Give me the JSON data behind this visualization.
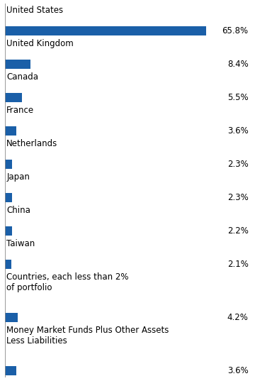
{
  "categories": [
    "United States",
    "United Kingdom",
    "Canada",
    "France",
    "Netherlands",
    "Japan",
    "China",
    "Taiwan",
    "Countries, each less than 2%\nof portfolio",
    "Money Market Funds Plus Other Assets\nLess Liabilities"
  ],
  "values": [
    65.8,
    8.4,
    5.5,
    3.6,
    2.3,
    2.3,
    2.2,
    2.1,
    4.2,
    3.6
  ],
  "labels": [
    "65.8%",
    "8.4%",
    "5.5%",
    "3.6%",
    "2.3%",
    "2.3%",
    "2.2%",
    "2.1%",
    "4.2%",
    "3.6%"
  ],
  "bar_color": "#1a5fa8",
  "background_color": "#ffffff",
  "text_color": "#000000",
  "bar_height": 0.28,
  "xlim": [
    0,
    80
  ],
  "label_fontsize": 8.5,
  "value_fontsize": 8.5,
  "vline_color": "#888888"
}
